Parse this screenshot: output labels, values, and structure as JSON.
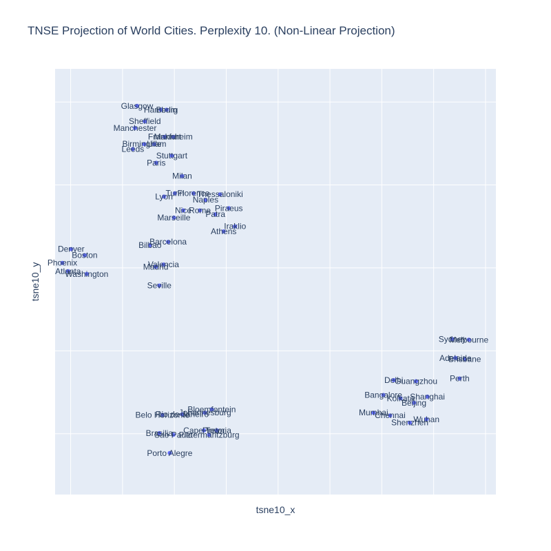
{
  "chart_data": {
    "type": "scatter",
    "title": "TNSE Projection of World Cities. Perplexity 10. (Non-Linear Projection)",
    "xlabel": "tsne10_x",
    "ylabel": "tsne10_y",
    "xlim": [
      -28,
      57
    ],
    "ylim": [
      -41,
      36
    ],
    "x_gridlines": [
      -25,
      -15,
      -5,
      5,
      15,
      25,
      35,
      45,
      55
    ],
    "y_gridlines": [
      -30,
      -15,
      0,
      15,
      30
    ],
    "grid": true,
    "legend": "none",
    "marker_color": "#636efa",
    "plot_bg": "#e5ecf6",
    "points": [
      {
        "label": "Glasgow",
        "x": -12.2,
        "y": 29.3
      },
      {
        "label": "Berlin",
        "x": -6.5,
        "y": 28.6
      },
      {
        "label": "Hamburg",
        "x": -7.6,
        "y": 28.6
      },
      {
        "label": "Sheffield",
        "x": -10.7,
        "y": 26.5
      },
      {
        "label": "Manchester",
        "x": -12.6,
        "y": 25.3
      },
      {
        "label": "Frankfurt",
        "x": -6.9,
        "y": 23.7
      },
      {
        "label": "Mannheim",
        "x": -5.2,
        "y": 23.7
      },
      {
        "label": "Birmingham",
        "x": -10.8,
        "y": 22.4
      },
      {
        "label": "Lille",
        "x": -8.9,
        "y": 22.4
      },
      {
        "label": "Leeds",
        "x": -13.0,
        "y": 21.5
      },
      {
        "label": "Stuttgart",
        "x": -5.5,
        "y": 20.3
      },
      {
        "label": "Paris",
        "x": -8.5,
        "y": 19.0
      },
      {
        "label": "Milan",
        "x": -3.5,
        "y": 16.6
      },
      {
        "label": "Turin",
        "x": -4.9,
        "y": 13.5
      },
      {
        "label": "Florence",
        "x": -1.3,
        "y": 13.5
      },
      {
        "label": "Thessaloniki",
        "x": 3.8,
        "y": 13.3
      },
      {
        "label": "Lyon",
        "x": -7.0,
        "y": 12.9
      },
      {
        "label": "Naples",
        "x": 1.0,
        "y": 12.3
      },
      {
        "label": "Piraeus",
        "x": 5.5,
        "y": 10.8
      },
      {
        "label": "Nice",
        "x": -3.3,
        "y": 10.4
      },
      {
        "label": "Rome",
        "x": -0.1,
        "y": 10.4
      },
      {
        "label": "Patra",
        "x": 2.9,
        "y": 9.7
      },
      {
        "label": "Marseille",
        "x": -5.1,
        "y": 9.1
      },
      {
        "label": "Iraklio",
        "x": 6.7,
        "y": 7.5
      },
      {
        "label": "Athens",
        "x": 4.5,
        "y": 6.6
      },
      {
        "label": "Barcelona",
        "x": -6.2,
        "y": 4.7
      },
      {
        "label": "Bilbao",
        "x": -9.7,
        "y": 4.1
      },
      {
        "label": "Denver",
        "x": -24.9,
        "y": 3.4
      },
      {
        "label": "Boston",
        "x": -22.3,
        "y": 2.3
      },
      {
        "label": "Phoenix",
        "x": -26.6,
        "y": 0.9
      },
      {
        "label": "Valencia",
        "x": -7.1,
        "y": 0.6
      },
      {
        "label": "Madrid",
        "x": -8.6,
        "y": 0.2
      },
      {
        "label": "Atlanta",
        "x": -25.5,
        "y": -0.6
      },
      {
        "label": "Washington",
        "x": -21.9,
        "y": -1.1
      },
      {
        "label": "Seville",
        "x": -7.9,
        "y": -3.2
      },
      {
        "label": "Sydney",
        "x": 48.6,
        "y": -12.9
      },
      {
        "label": "Melbourne",
        "x": 51.8,
        "y": -13.0
      },
      {
        "label": "Adelaide",
        "x": 49.2,
        "y": -16.3
      },
      {
        "label": "Brisbane",
        "x": 51.0,
        "y": -16.5
      },
      {
        "label": "Perth",
        "x": 50.0,
        "y": -20.0
      },
      {
        "label": "Delhi",
        "x": 37.3,
        "y": -20.3
      },
      {
        "label": "Guangzhou",
        "x": 41.6,
        "y": -20.5
      },
      {
        "label": "Bangalore",
        "x": 35.3,
        "y": -23.0
      },
      {
        "label": "Shanghai",
        "x": 43.8,
        "y": -23.3
      },
      {
        "label": "Kolkata",
        "x": 38.6,
        "y": -23.6
      },
      {
        "label": "Beijing",
        "x": 41.2,
        "y": -24.4
      },
      {
        "label": "Bloemfontein",
        "x": 2.2,
        "y": -25.6
      },
      {
        "label": "Johannesburg",
        "x": 0.9,
        "y": -26.2
      },
      {
        "label": "Rio de Janeiro",
        "x": -3.5,
        "y": -26.5
      },
      {
        "label": "Belo Horizonte",
        "x": -7.3,
        "y": -26.6
      },
      {
        "label": "Mumbai",
        "x": 33.4,
        "y": -26.2
      },
      {
        "label": "Chennai",
        "x": 36.6,
        "y": -26.7
      },
      {
        "label": "Wuhan",
        "x": 43.6,
        "y": -27.4
      },
      {
        "label": "Shenzhen",
        "x": 40.4,
        "y": -28.0
      },
      {
        "label": "Cape Town",
        "x": 0.7,
        "y": -29.4
      },
      {
        "label": "Pretoria",
        "x": 3.2,
        "y": -29.4
      },
      {
        "label": "Brasilia",
        "x": -7.9,
        "y": -29.9
      },
      {
        "label": "Sao Paulo",
        "x": -5.2,
        "y": -30.2
      },
      {
        "label": "Pietermaritzburg",
        "x": 1.7,
        "y": -30.2
      },
      {
        "label": "Porto Alegre",
        "x": -5.9,
        "y": -33.5
      }
    ]
  }
}
